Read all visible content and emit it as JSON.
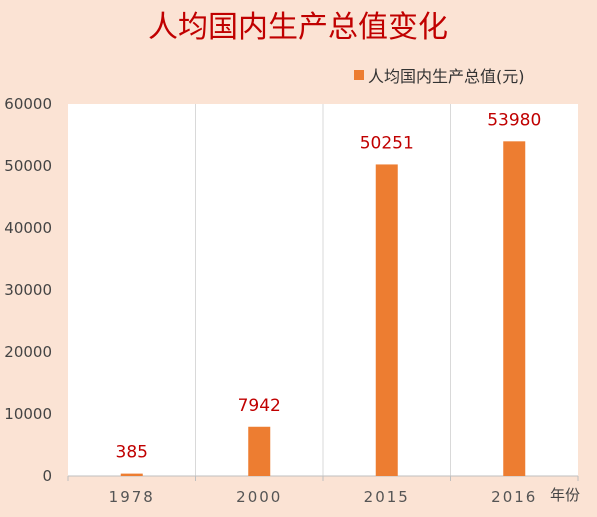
{
  "chart_data": {
    "type": "bar",
    "title": "人均国内生产总值变化",
    "xlabel": "年份",
    "categories": [
      "1978",
      "2000",
      "2015",
      "2016"
    ],
    "series": [
      {
        "name": "人均国内生产总值(元)",
        "values": [
          385,
          7942,
          50251,
          53980
        ]
      }
    ],
    "ylim": [
      0,
      60000
    ],
    "yticks": [
      "0",
      "10000",
      "20000",
      "30000",
      "40000",
      "50000",
      "60000"
    ],
    "data_labels": [
      "385",
      "7942",
      "50251",
      "53980"
    ],
    "grid": "vertical category separators",
    "legend_position": "top-right",
    "colors": {
      "bar": "#ed7d31",
      "label": "#c00000",
      "background": "#fbe3d4",
      "plot": "#ffffff"
    }
  }
}
